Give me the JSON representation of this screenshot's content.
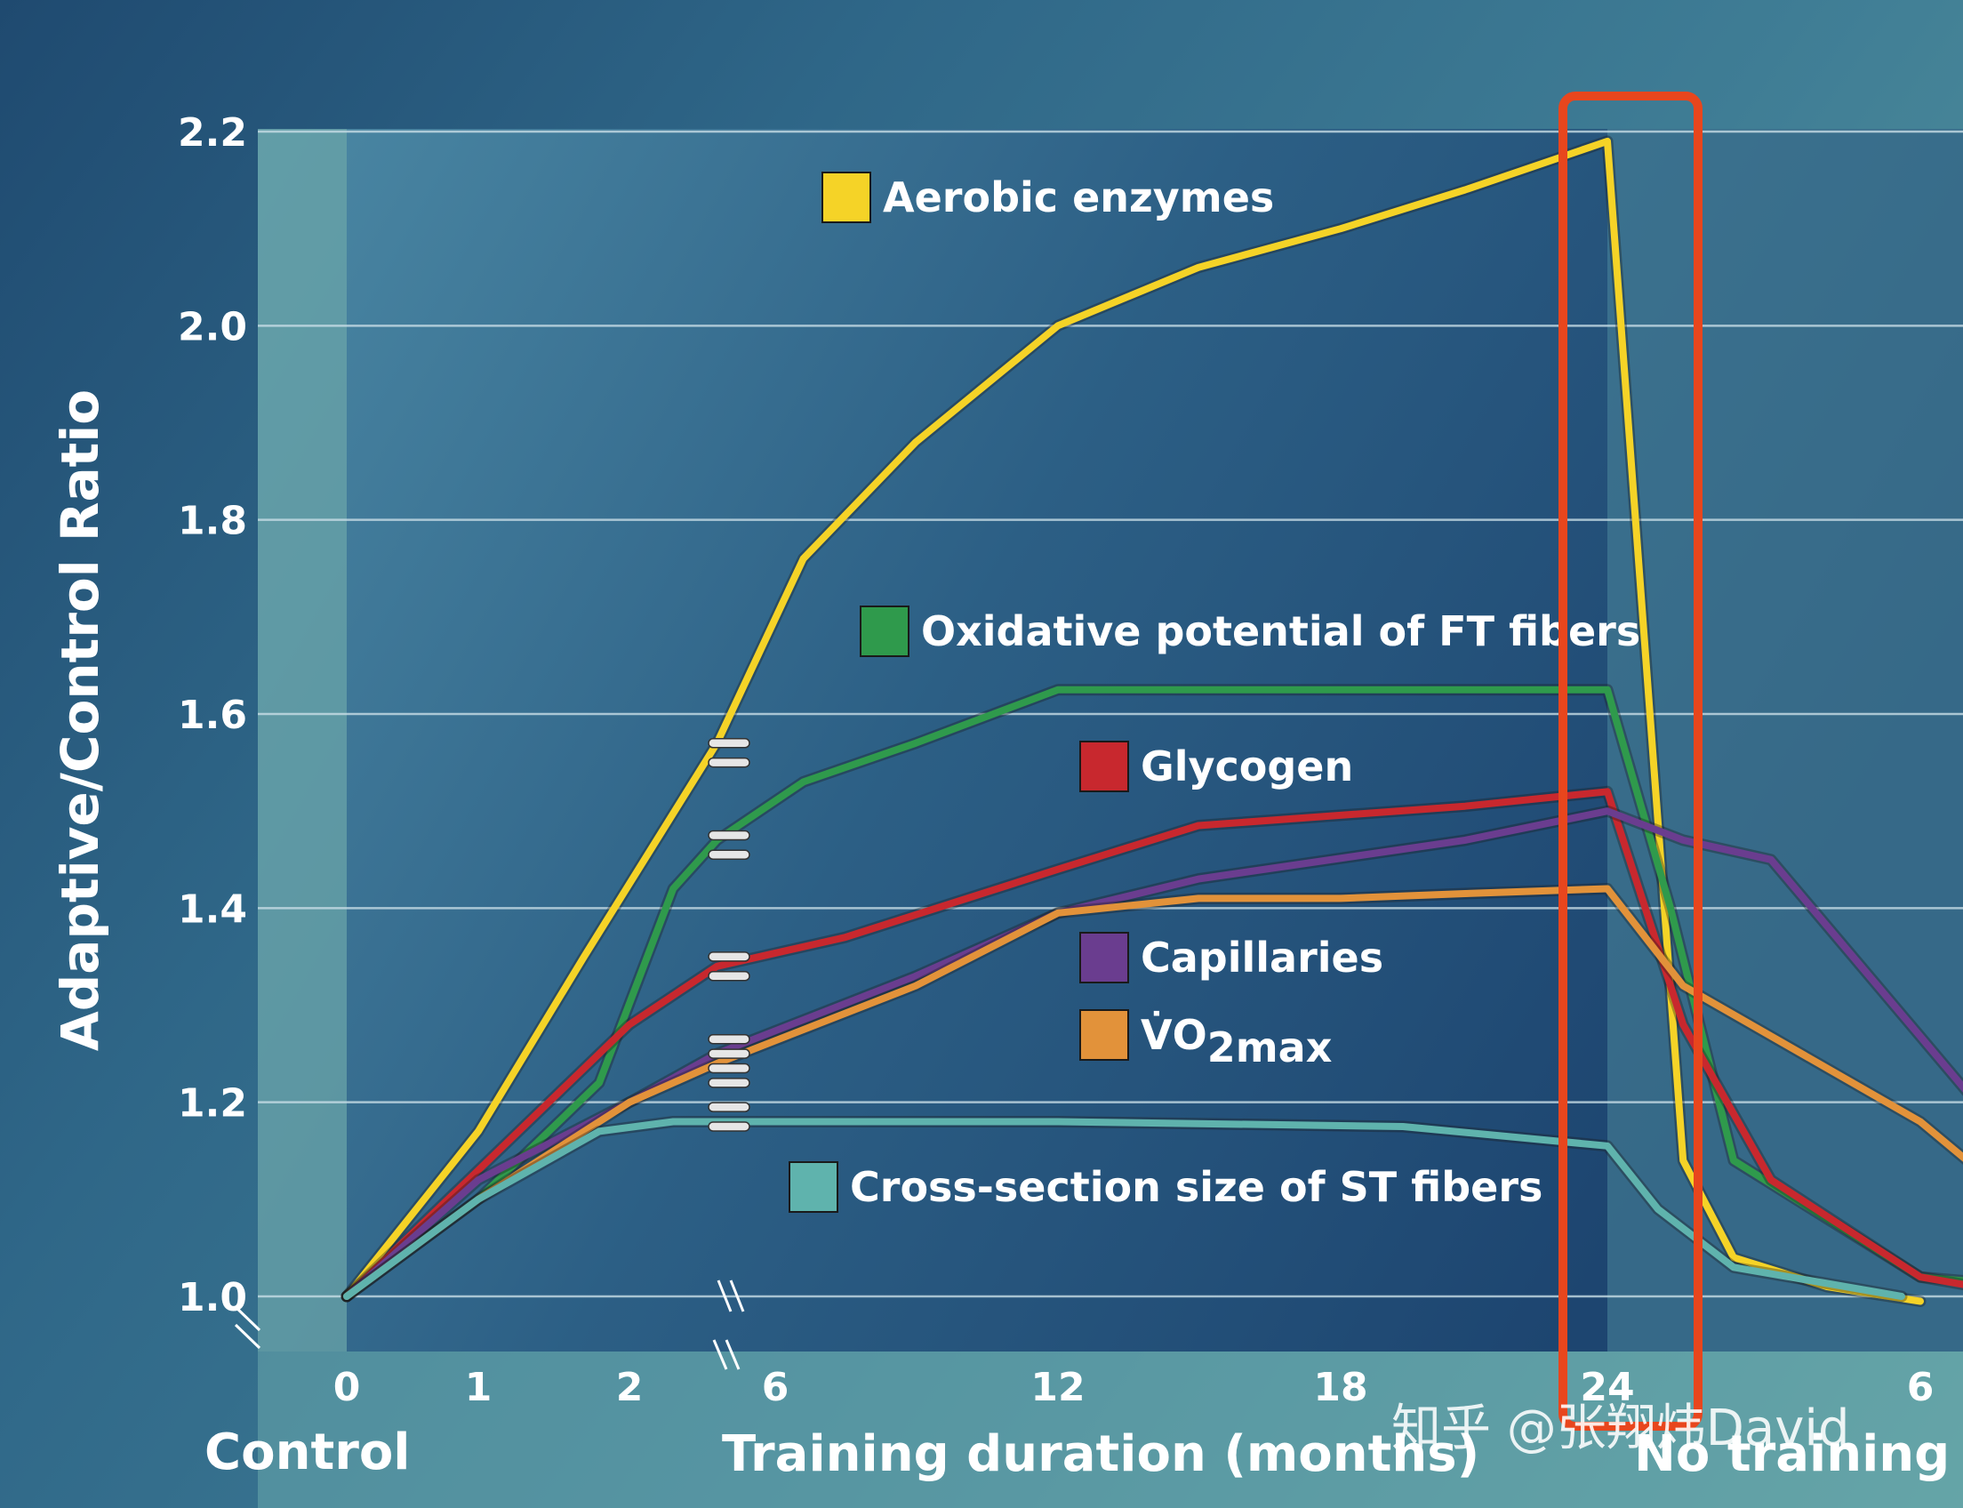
{
  "chart_data": {
    "type": "line",
    "ylabel": "Adaptive/Control Ratio",
    "ylim": [
      1.0,
      2.2
    ],
    "yticks": [
      "1.0",
      "1.2",
      "1.4",
      "1.6",
      "1.8",
      "2.0",
      "2.2"
    ],
    "xticks": [
      {
        "label": "0",
        "x": 0
      },
      {
        "label": "1",
        "x": 1
      },
      {
        "label": "2",
        "x": 2
      },
      {
        "label": "6",
        "x": 3
      },
      {
        "label": "12",
        "x": 5
      },
      {
        "label": "18",
        "x": 7
      },
      {
        "label": "24",
        "x": 9
      },
      {
        "label": "6",
        "x": 11
      }
    ],
    "sections": {
      "control": "Control",
      "training": "Training duration (months)",
      "detraining": "No training"
    },
    "grid": true,
    "annotation": "highlight box around training month 24",
    "series": [
      {
        "name": "Aerobic enzymes",
        "color": "#f5d327",
        "points": [
          [
            0,
            1.0
          ],
          [
            1,
            1.17
          ],
          [
            1.7,
            1.35
          ],
          [
            2.6,
            1.57
          ],
          [
            3.2,
            1.76
          ],
          [
            4,
            1.88
          ],
          [
            5,
            2.0
          ],
          [
            6,
            2.06
          ],
          [
            7,
            2.1
          ],
          [
            8,
            2.14
          ],
          [
            9,
            2.19
          ],
          [
            9.6,
            1.14
          ],
          [
            10,
            1.04
          ],
          [
            10.5,
            1.01
          ],
          [
            11,
            0.995
          ]
        ]
      },
      {
        "name": "Oxidative potential of FT fibers",
        "color": "#2f9a4c",
        "points": [
          [
            0,
            1.0
          ],
          [
            1,
            1.1
          ],
          [
            1.8,
            1.22
          ],
          [
            2.3,
            1.42
          ],
          [
            2.6,
            1.47
          ],
          [
            3.2,
            1.53
          ],
          [
            4,
            1.57
          ],
          [
            5,
            1.625
          ],
          [
            6,
            1.625
          ],
          [
            7,
            1.625
          ],
          [
            8,
            1.625
          ],
          [
            9,
            1.625
          ],
          [
            9.5,
            1.4
          ],
          [
            10,
            1.14
          ],
          [
            11,
            1.02
          ],
          [
            11.9,
            1.005
          ]
        ]
      },
      {
        "name": "Glycogen",
        "color": "#c8282e",
        "points": [
          [
            0,
            1.0
          ],
          [
            1,
            1.13
          ],
          [
            2,
            1.28
          ],
          [
            2.6,
            1.34
          ],
          [
            3.5,
            1.37
          ],
          [
            5,
            1.44
          ],
          [
            6,
            1.485
          ],
          [
            8,
            1.505
          ],
          [
            9,
            1.52
          ],
          [
            9.6,
            1.28
          ],
          [
            10.2,
            1.12
          ],
          [
            11,
            1.02
          ],
          [
            11.9,
            0.99
          ]
        ]
      },
      {
        "name": "Capillaries",
        "color": "#6a3d8f",
        "points": [
          [
            0,
            1.0
          ],
          [
            1,
            1.12
          ],
          [
            2,
            1.2
          ],
          [
            2.6,
            1.25
          ],
          [
            4,
            1.33
          ],
          [
            5,
            1.395
          ],
          [
            6,
            1.43
          ],
          [
            8,
            1.47
          ],
          [
            9,
            1.5
          ],
          [
            9.6,
            1.47
          ],
          [
            10.2,
            1.45
          ],
          [
            12,
            1.04
          ]
        ]
      },
      {
        "name": "VO2max",
        "color": "#e2923a",
        "points": [
          [
            0,
            1.0
          ],
          [
            1,
            1.1
          ],
          [
            2,
            1.2
          ],
          [
            2.6,
            1.24
          ],
          [
            4,
            1.32
          ],
          [
            5,
            1.395
          ],
          [
            6,
            1.41
          ],
          [
            7,
            1.41
          ],
          [
            8,
            1.415
          ],
          [
            9,
            1.42
          ],
          [
            9.6,
            1.32
          ],
          [
            11,
            1.18
          ],
          [
            12,
            1.02
          ]
        ]
      },
      {
        "name": "Cross-section size of ST fibers",
        "color": "#5fb3ad",
        "points": [
          [
            0,
            1.0
          ],
          [
            1,
            1.1
          ],
          [
            1.8,
            1.17
          ],
          [
            2.3,
            1.18
          ],
          [
            2.6,
            1.18
          ],
          [
            5,
            1.18
          ],
          [
            7.5,
            1.175
          ],
          [
            9,
            1.155
          ],
          [
            9.4,
            1.09
          ],
          [
            10,
            1.03
          ],
          [
            10.9,
            1.0
          ]
        ]
      }
    ]
  },
  "legend": [
    {
      "label": "Aerobic enzymes",
      "color": "#f5d327"
    },
    {
      "label": "Oxidative potential of FT fibers",
      "color": "#2f9a4c"
    },
    {
      "label": "Glycogen",
      "color": "#c8282e"
    },
    {
      "label": "Capillaries",
      "color": "#6a3d8f"
    },
    {
      "label": "V̇O",
      "sub": "2max",
      "color": "#e2923a"
    },
    {
      "label": "Cross-section size of ST fibers",
      "color": "#5fb3ad"
    }
  ],
  "highlight_color": "#e8461d",
  "watermark": "知乎 @张翔炜David"
}
